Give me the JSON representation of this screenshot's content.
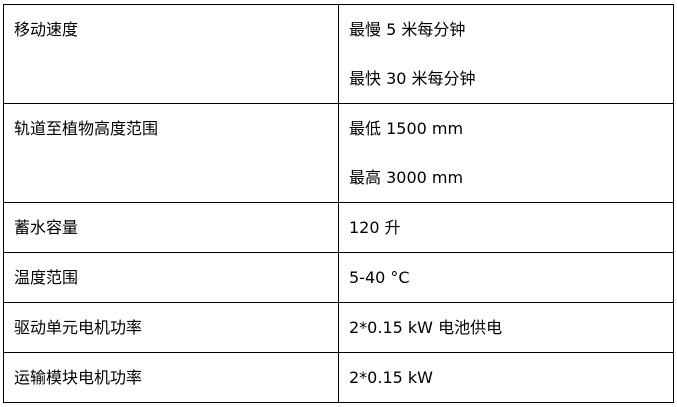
{
  "rows": [
    {
      "label": "移动速度",
      "values": [
        "最慢  5 米每分钟",
        "最快  30 米每分钟"
      ]
    },
    {
      "label": "轨道至植物高度范围",
      "values": [
        "最低  1500 mm",
        "最高  3000 mm"
      ]
    },
    {
      "label": "蓄水容量",
      "values": [
        "120  升"
      ]
    },
    {
      "label": "温度范围",
      "values": [
        "5-40 °C"
      ]
    },
    {
      "label": "驱动单元电机功率",
      "values": [
        "2*0.15 kW  电池供电"
      ]
    },
    {
      "label": "运输模块电机功率",
      "values": [
        "2*0.15 kW"
      ]
    }
  ]
}
